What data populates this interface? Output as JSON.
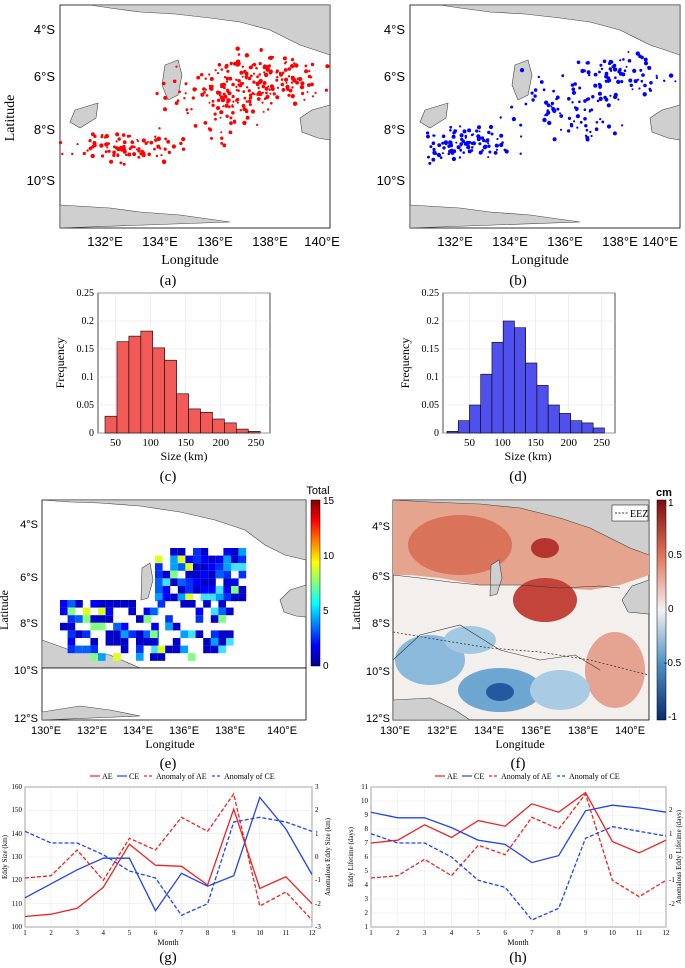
{
  "panels": {
    "a": {
      "label": "(a)",
      "xlabel": "Longitude",
      "ylabel": "Latitude",
      "xticks": [
        "132°E",
        "134°E",
        "136°E",
        "138°E",
        "140°E"
      ],
      "yticks": [
        "4°S",
        "6°S",
        "8°S",
        "10°S"
      ],
      "marker_color": "#ff0000"
    },
    "b": {
      "label": "(b)",
      "xlabel": "Longitude",
      "xticks": [
        "132°E",
        "134°E",
        "136°E",
        "138°E",
        "140°E"
      ],
      "yticks": [
        "4°S",
        "6°S",
        "8°S",
        "10°S"
      ],
      "marker_color": "#0000ff"
    },
    "c": {
      "label": "(c)",
      "xlabel": "Size (km)",
      "ylabel": "Frequency",
      "xticks": [
        "50",
        "100",
        "150",
        "200",
        "250"
      ],
      "yticks": [
        "0",
        "0.05",
        "0.1",
        "0.15",
        "0.2",
        "0.25"
      ],
      "bar_color": "#f25a58"
    },
    "d": {
      "label": "(d)",
      "xlabel": "Size (km)",
      "ylabel": "Frequency",
      "xticks": [
        "50",
        "100",
        "150",
        "200",
        "250"
      ],
      "yticks": [
        "0",
        "0.05",
        "0.1",
        "0.15",
        "0.2",
        "0.25"
      ],
      "bar_color": "#5050ee"
    },
    "e": {
      "label": "(e)",
      "xlabel": "Longitude",
      "ylabel": "Latitude",
      "xticks": [
        "130°E",
        "132°E",
        "134°E",
        "136°E",
        "138°E",
        "140°E"
      ],
      "yticks": [
        "4°S",
        "6°S",
        "8°S",
        "10°S",
        "12°S"
      ],
      "colorbar_title": "Total",
      "colorbar_ticks": [
        "0",
        "5",
        "10",
        "15"
      ]
    },
    "f": {
      "label": "(f)",
      "xlabel": "Longitude",
      "ylabel": "Latitude",
      "xticks": [
        "130°E",
        "132°E",
        "134°E",
        "136°E",
        "138°E",
        "140°E"
      ],
      "yticks": [
        "4°S",
        "6°S",
        "8°S",
        "10°S",
        "12°S"
      ],
      "colorbar_title": "cm",
      "colorbar_ticks": [
        "1",
        "0.5",
        "0",
        "-0.5",
        "-1"
      ],
      "legend": "EEZ",
      "contour_label": "0"
    },
    "g": {
      "label": "(g)",
      "xlabel": "Month",
      "ylabel": "Eddy Size (km)",
      "ylabel_right": "Anomalous Eddy Size (km)",
      "yticks": [
        "100",
        "110",
        "120",
        "130",
        "140",
        "150",
        "160"
      ],
      "yticks_right": [
        "2",
        "1",
        "0",
        "-1",
        "-2",
        "-3"
      ],
      "yticks_right_top": "3"
    },
    "h": {
      "label": "(h)",
      "xlabel": "Month",
      "ylabel": "Eddy Lifetime (days)",
      "ylabel_right": "Anomalous Eddy Lifetime (days)",
      "yticks": [
        "1",
        "2",
        "3",
        "4",
        "5",
        "6",
        "7",
        "8",
        "9",
        "10",
        "11"
      ]
    }
  },
  "line_legend": [
    "AE",
    "CE",
    "Anomaly of AE",
    "Anomaly of CE"
  ],
  "month_ticks": [
    "1",
    "2",
    "3",
    "4",
    "5",
    "6",
    "7",
    "8",
    "9",
    "10",
    "11",
    "12"
  ],
  "chart_data": [
    {
      "panel": "c",
      "type": "bar",
      "title": "",
      "xlabel": "Size (km)",
      "ylabel": "Frequency",
      "bin_edges": [
        35,
        52,
        69,
        86,
        103,
        120,
        137,
        154,
        171,
        188,
        205,
        222,
        239,
        256
      ],
      "values": [
        0.03,
        0.163,
        0.173,
        0.182,
        0.152,
        0.13,
        0.07,
        0.043,
        0.037,
        0.025,
        0.018,
        0.007,
        0.003
      ],
      "xlim": [
        25,
        270
      ],
      "ylim": [
        0,
        0.25
      ]
    },
    {
      "panel": "d",
      "type": "bar",
      "title": "",
      "xlabel": "Size (km)",
      "ylabel": "Frequency",
      "bin_edges": [
        16,
        33,
        50,
        67,
        84,
        101,
        118,
        135,
        152,
        169,
        186,
        203,
        220,
        237,
        254
      ],
      "values": [
        0.003,
        0.022,
        0.05,
        0.105,
        0.162,
        0.2,
        0.188,
        0.125,
        0.085,
        0.05,
        0.035,
        0.022,
        0.018,
        0.009
      ],
      "xlim": [
        10,
        270
      ],
      "ylim": [
        0,
        0.25
      ]
    },
    {
      "panel": "g",
      "type": "line",
      "xlabel": "Month",
      "ylabel": "Eddy Size (km)",
      "x": [
        1,
        2,
        3,
        4,
        5,
        6,
        7,
        8,
        9,
        10,
        11,
        12
      ],
      "ylim": [
        100,
        160
      ],
      "ylim_right": [
        -3,
        3
      ],
      "series": [
        {
          "name": "AE",
          "axis": "left",
          "color": "#ee2222",
          "dash": "solid",
          "values": [
            104.5,
            105.5,
            108,
            117,
            135.5,
            126.5,
            126,
            118,
            150.5,
            116.5,
            121.5,
            110
          ]
        },
        {
          "name": "CE",
          "axis": "left",
          "color": "#2244ee",
          "dash": "solid",
          "values": [
            112.5,
            118.5,
            124.5,
            129.5,
            129.5,
            107,
            123,
            117.5,
            122,
            155.5,
            142,
            122.5
          ]
        },
        {
          "name": "Anomaly of AE",
          "axis": "right",
          "color": "#ee2222",
          "dash": "dashed",
          "values": [
            -0.9,
            -0.8,
            0.3,
            -1.0,
            0.8,
            0.3,
            1.7,
            1.1,
            2.7,
            -2.1,
            -1.5,
            -2.7
          ]
        },
        {
          "name": "Anomaly of CE",
          "axis": "right",
          "color": "#2244ee",
          "dash": "dashed",
          "values": [
            1.1,
            0.6,
            0.6,
            0.1,
            -0.6,
            -0.9,
            -2.5,
            -2.0,
            1.5,
            1.7,
            1.5,
            1.1
          ]
        }
      ]
    },
    {
      "panel": "h",
      "type": "line",
      "xlabel": "Month",
      "ylabel": "Eddy Lifetime (days)",
      "x": [
        1,
        2,
        3,
        4,
        5,
        6,
        7,
        8,
        9,
        10,
        11,
        12
      ],
      "ylim": [
        1,
        11
      ],
      "ylim_right": [
        -3,
        3
      ],
      "series": [
        {
          "name": "AE",
          "axis": "left",
          "color": "#ee2222",
          "dash": "solid",
          "values": [
            7.0,
            7.2,
            8.3,
            7.4,
            8.6,
            8.2,
            9.8,
            9.2,
            10.6,
            7.1,
            6.3,
            7.2
          ]
        },
        {
          "name": "CE",
          "axis": "left",
          "color": "#2244ee",
          "dash": "solid",
          "values": [
            9.2,
            8.8,
            8.8,
            8.1,
            7.2,
            6.9,
            5.6,
            6.1,
            9.3,
            9.7,
            9.5,
            9.2
          ]
        },
        {
          "name": "Anomaly of AE",
          "axis": "right",
          "color": "#ee2222",
          "dash": "dashed",
          "values": [
            -0.9,
            -0.8,
            -0.1,
            -0.8,
            0.5,
            0.1,
            1.7,
            1.2,
            2.7,
            -1.0,
            -1.7,
            -1.0
          ]
        },
        {
          "name": "Anomaly of CE",
          "axis": "right",
          "color": "#2244ee",
          "dash": "dashed",
          "values": [
            1.0,
            0.6,
            0.6,
            0.0,
            -1.0,
            -1.3,
            -2.7,
            -2.2,
            0.8,
            1.3,
            1.1,
            0.9
          ]
        }
      ]
    }
  ]
}
